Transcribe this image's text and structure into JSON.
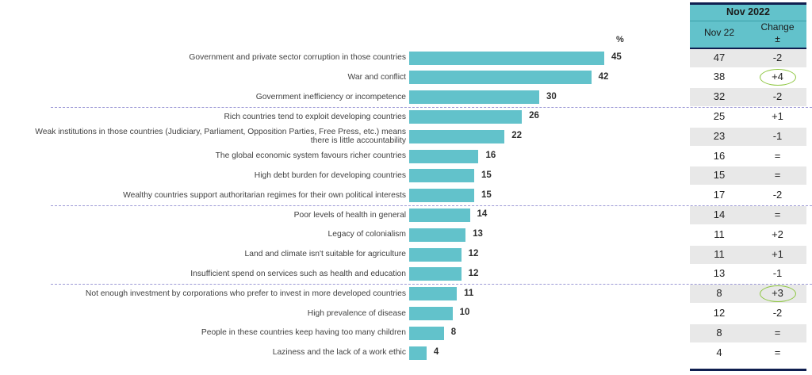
{
  "chart_data": {
    "type": "bar",
    "orientation": "horizontal",
    "unit_label": "%",
    "xlim": [
      0,
      45
    ],
    "categories": [
      "Government and private sector corruption in those countries",
      "War and conflict",
      "Government inefficiency or incompetence",
      "Rich countries tend to exploit developing countries",
      "Weak institutions in those countries (Judiciary, Parliament, Opposition Parties, Free Press, etc.) means there is little accountability",
      "The global economic system favours richer countries",
      "High debt burden for developing countries",
      "Wealthy countries support authoritarian regimes for their own political interests",
      "Poor levels of health in general",
      "Legacy of colonialism",
      "Land and climate isn't suitable for agriculture",
      "Insufficient spend on services such as health and education",
      "Not enough investment by corporations who prefer to invest in more developed countries",
      "High prevalence of disease",
      "People in these countries keep having too many children",
      "Laziness and the lack of a work ethic"
    ],
    "label_lines": [
      [
        "Government and private sector corruption in those countries"
      ],
      [
        "War and conflict"
      ],
      [
        "Government inefficiency or incompetence"
      ],
      [
        "Rich countries tend to exploit developing countries"
      ],
      [
        "Weak institutions in those countries (Judiciary, Parliament, Opposition Parties, Free Press, etc.) means",
        "there is little accountability"
      ],
      [
        "The global economic system favours richer countries"
      ],
      [
        "High debt burden for developing countries"
      ],
      [
        "Wealthy countries support authoritarian regimes for their own political interests"
      ],
      [
        "Poor levels of health in general"
      ],
      [
        "Legacy of colonialism"
      ],
      [
        "Land and climate isn't suitable for agriculture"
      ],
      [
        "Insufficient spend on services such as health and education"
      ],
      [
        "Not enough investment by corporations who prefer to invest in more developed countries"
      ],
      [
        "High prevalence of disease"
      ],
      [
        "People in these countries keep having too many children"
      ],
      [
        "Laziness and the lack of a work ethic"
      ]
    ],
    "values": [
      45,
      42,
      30,
      26,
      22,
      16,
      15,
      15,
      14,
      13,
      12,
      12,
      11,
      10,
      8,
      4
    ],
    "group_separators_after_index": [
      2,
      7,
      11
    ],
    "bar_color": "#62c2cb",
    "comparison_table": {
      "title": "Nov 2022",
      "col1_header": "Nov 22",
      "col2_header_line1": "Change",
      "col2_header_line2": "±",
      "nov22": [
        "47",
        "38",
        "32",
        "25",
        "23",
        "16",
        "15",
        "17",
        "14",
        "11",
        "11",
        "13",
        "8",
        "12",
        "8",
        "4"
      ],
      "change": [
        "-2",
        "+4",
        "-2",
        "+1",
        "-1",
        "=",
        "=",
        "-2",
        "=",
        "+2",
        "+1",
        "-1",
        "+3",
        "-2",
        "=",
        "="
      ],
      "highlighted_changes": [
        1,
        12
      ],
      "highlight_color": "#8cc63e",
      "header_color": "#62c2cb",
      "rule_color": "#0f1e4f"
    }
  }
}
